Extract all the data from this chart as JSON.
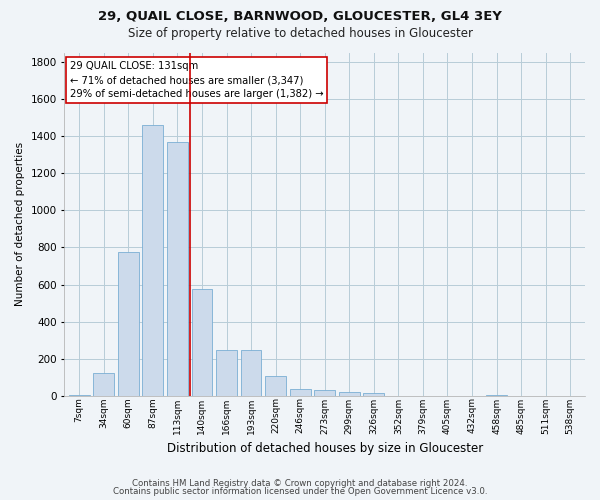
{
  "title1": "29, QUAIL CLOSE, BARNWOOD, GLOUCESTER, GL4 3EY",
  "title2": "Size of property relative to detached houses in Gloucester",
  "xlabel": "Distribution of detached houses by size in Gloucester",
  "ylabel": "Number of detached properties",
  "footer1": "Contains HM Land Registry data © Crown copyright and database right 2024.",
  "footer2": "Contains public sector information licensed under the Open Government Licence v3.0.",
  "annotation_title": "29 QUAIL CLOSE: 131sqm",
  "annotation_line1": "← 71% of detached houses are smaller (3,347)",
  "annotation_line2": "29% of semi-detached houses are larger (1,382) →",
  "bar_color": "#ccdaeb",
  "bar_edge_color": "#7aafd4",
  "vline_color": "#cc0000",
  "vline_x": 4.5,
  "categories": [
    "7sqm",
    "34sqm",
    "60sqm",
    "87sqm",
    "113sqm",
    "140sqm",
    "166sqm",
    "193sqm",
    "220sqm",
    "246sqm",
    "273sqm",
    "299sqm",
    "326sqm",
    "352sqm",
    "379sqm",
    "405sqm",
    "432sqm",
    "458sqm",
    "485sqm",
    "511sqm",
    "538sqm"
  ],
  "values": [
    5,
    125,
    775,
    1460,
    1370,
    575,
    245,
    245,
    105,
    35,
    30,
    20,
    15,
    0,
    0,
    0,
    0,
    5,
    0,
    0,
    0
  ],
  "ylim": [
    0,
    1850
  ],
  "yticks": [
    0,
    200,
    400,
    600,
    800,
    1000,
    1200,
    1400,
    1600,
    1800
  ],
  "grid_color": "#b8ccd8",
  "background_color": "#f0f4f8",
  "plot_bg_color": "#f0f4f8"
}
